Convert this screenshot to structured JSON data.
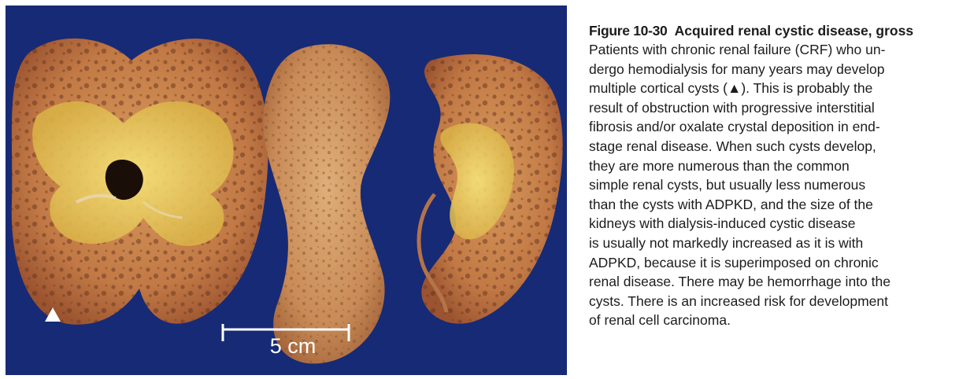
{
  "photo": {
    "scale_bar_label": "5 cm",
    "arrow_marker": "white-triangle-marker",
    "colors": {
      "background": "#172a76",
      "kidney_tissue": "#c9834f",
      "medulla_yellow": "#efd35a",
      "marker": "#ffffff"
    }
  },
  "caption": {
    "figure_number": "Figure 10-30",
    "title": "Acquired renal cystic disease, gross",
    "body_lines": [
      "Patients with chronic renal failure (CRF) who un-",
      "dergo hemodialysis for many years may develop",
      "multiple cortical cysts (▲). This is probably the",
      "result of obstruction with progressive interstitial",
      "fibrosis and/or oxalate crystal deposition in end-",
      "stage renal disease. When such cysts develop,",
      "they are more numerous than the common",
      "simple renal cysts, but usually less numerous",
      "than the cysts with ADPKD, and the size of the",
      "kidneys with dialysis-induced cystic disease",
      "is usually not markedly increased as it is with",
      "ADPKD, because it is superimposed on chronic",
      "renal disease. There may be hemorrhage into the",
      "cysts. There is an increased risk for development",
      "of renal cell carcinoma."
    ]
  }
}
